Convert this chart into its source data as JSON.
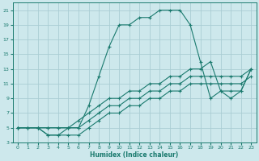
{
  "xlabel": "Humidex (Indice chaleur)",
  "bg_color": "#cde8ec",
  "grid_color": "#aacdd4",
  "line_color": "#1a7a6e",
  "xlim": [
    -0.5,
    23.5
  ],
  "ylim": [
    3,
    22
  ],
  "xticks": [
    0,
    1,
    2,
    3,
    4,
    5,
    6,
    7,
    8,
    9,
    10,
    11,
    12,
    13,
    14,
    15,
    16,
    17,
    18,
    19,
    20,
    21,
    22,
    23
  ],
  "yticks": [
    3,
    5,
    7,
    9,
    11,
    13,
    15,
    17,
    19,
    21
  ],
  "lines": [
    {
      "x": [
        0,
        2,
        3,
        4,
        5,
        6,
        7,
        8,
        9,
        10,
        11,
        12,
        13,
        14,
        15,
        16,
        17,
        18,
        19,
        20,
        21,
        22,
        23
      ],
      "y": [
        5,
        5,
        4,
        4,
        5,
        5,
        8,
        12,
        16,
        19,
        19,
        20,
        20,
        21,
        21,
        21,
        19,
        14,
        9,
        10,
        9,
        10,
        13
      ]
    },
    {
      "x": [
        0,
        1,
        2,
        3,
        4,
        5,
        6,
        7,
        8,
        9,
        10,
        11,
        12,
        13,
        14,
        15,
        16,
        17,
        18,
        19,
        20,
        21,
        22,
        23
      ],
      "y": [
        5,
        5,
        5,
        5,
        5,
        5,
        6,
        7,
        8,
        9,
        9,
        10,
        10,
        11,
        11,
        12,
        12,
        13,
        13,
        14,
        10,
        10,
        10,
        13
      ]
    },
    {
      "x": [
        0,
        1,
        2,
        3,
        4,
        5,
        6,
        7,
        8,
        9,
        10,
        11,
        12,
        13,
        14,
        15,
        16,
        17,
        18,
        19,
        20,
        21,
        22,
        23
      ],
      "y": [
        5,
        5,
        5,
        5,
        5,
        5,
        5,
        6,
        7,
        8,
        8,
        9,
        9,
        10,
        10,
        11,
        11,
        12,
        12,
        12,
        12,
        12,
        12,
        13
      ]
    },
    {
      "x": [
        0,
        1,
        2,
        3,
        4,
        5,
        6,
        7,
        8,
        9,
        10,
        11,
        12,
        13,
        14,
        15,
        16,
        17,
        18,
        19,
        20,
        21,
        22,
        23
      ],
      "y": [
        5,
        5,
        5,
        4,
        4,
        4,
        4,
        5,
        6,
        7,
        7,
        8,
        8,
        9,
        9,
        10,
        10,
        11,
        11,
        11,
        11,
        11,
        11,
        12
      ]
    }
  ]
}
